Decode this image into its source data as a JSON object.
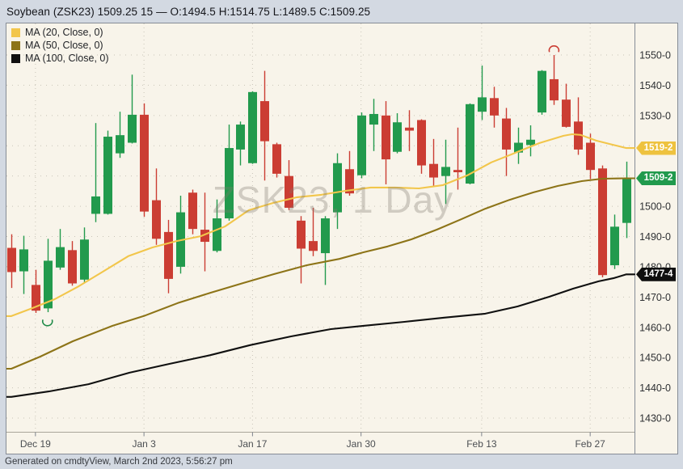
{
  "header": {
    "title": "Soybean (ZSK23) 1509.25 15 — O:1494.5 H:1514.75 L:1489.5 C:1509.25",
    "symbol_name": "Soybean",
    "symbol": "ZSK23",
    "last": "1509.25",
    "change": "15",
    "open": "1494.5",
    "high": "1514.75",
    "low": "1489.5",
    "close": "1509.25"
  },
  "legend": [
    {
      "label": "MA (20, Close, 0)",
      "color": "#f2c64b"
    },
    {
      "label": "MA (50, Close, 0)",
      "color": "#8d7418"
    },
    {
      "label": "MA (100, Close, 0)",
      "color": "#101010"
    }
  ],
  "footer": {
    "generated": "Generated on cmdtyView, March 2nd 2023, 5:56:27 pm"
  },
  "chart_data": {
    "type": "candlestick",
    "symbol": "ZSK23",
    "interval": "1 Day",
    "watermark": "ZSK23, 1 Day",
    "title": "Soybean (ZSK23)",
    "ylim": [
      1425.5,
      1552
    ],
    "grid": true,
    "colors": {
      "up": "#229a4d",
      "down": "#cb3d33",
      "background": "#f8f4ea"
    },
    "y_ticks": [
      {
        "label": "1550-0",
        "price": 1550
      },
      {
        "label": "1540-0",
        "price": 1540
      },
      {
        "label": "1530-0",
        "price": 1530
      },
      {
        "label": "1520-0",
        "price": 1520
      },
      {
        "label": "1510-0",
        "price": 1510
      },
      {
        "label": "1500-0",
        "price": 1500
      },
      {
        "label": "1490-0",
        "price": 1490
      },
      {
        "label": "1480-0",
        "price": 1480
      },
      {
        "label": "1470-0",
        "price": 1470
      },
      {
        "label": "1460-0",
        "price": 1460
      },
      {
        "label": "1450-0",
        "price": 1450
      },
      {
        "label": "1440-0",
        "price": 1440
      },
      {
        "label": "1430-0",
        "price": 1430
      }
    ],
    "x_ticks": [
      {
        "label": "Dec 19",
        "index": 2
      },
      {
        "label": "Jan 3",
        "index": 11
      },
      {
        "label": "Jan 17",
        "index": 20
      },
      {
        "label": "Jan 30",
        "index": 29
      },
      {
        "label": "Feb 13",
        "index": 39
      },
      {
        "label": "Feb 27",
        "index": 48
      }
    ],
    "badges": [
      {
        "label": "1519-2",
        "price": 1519.25,
        "bg": "#eec23f"
      },
      {
        "label": "1509-2",
        "price": 1509.25,
        "bg": "#219a4d"
      },
      {
        "label": "1477-4",
        "price": 1477.5,
        "bg": "#0f0f0f"
      }
    ],
    "candles": [
      [
        1486.25,
        1490.75,
        1473,
        1478.25
      ],
      [
        1478.5,
        1490.25,
        1471,
        1485.75
      ],
      [
        1474,
        1479,
        1464.75,
        1465.5
      ],
      [
        1466.25,
        1489.25,
        1465,
        1482
      ],
      [
        1479.75,
        1492.5,
        1479,
        1486.5
      ],
      [
        1485.5,
        1488.5,
        1473.75,
        1474.5
      ],
      [
        1475.75,
        1493,
        1474.5,
        1489
      ],
      [
        1497.5,
        1527.5,
        1494.75,
        1503.25
      ],
      [
        1497.5,
        1525,
        1497.25,
        1523
      ],
      [
        1517.5,
        1531.25,
        1516,
        1523.5
      ],
      [
        1521,
        1543.5,
        1520.75,
        1530.25
      ],
      [
        1530.25,
        1534,
        1496.5,
        1498.25
      ],
      [
        1502,
        1512.5,
        1487.25,
        1489.25
      ],
      [
        1491.5,
        1495.5,
        1471.25,
        1476
      ],
      [
        1480,
        1503.5,
        1477.75,
        1498
      ],
      [
        1504.5,
        1505.5,
        1490.75,
        1492.5
      ],
      [
        1492.25,
        1504.5,
        1478.5,
        1488.25
      ],
      [
        1485.25,
        1502.25,
        1484.75,
        1496
      ],
      [
        1496,
        1527,
        1495.25,
        1519.25
      ],
      [
        1518.75,
        1528,
        1513.5,
        1527
      ],
      [
        1514.25,
        1538,
        1514,
        1537.75
      ],
      [
        1534.75,
        1544.75,
        1508.5,
        1521.5
      ],
      [
        1520.5,
        1521,
        1509.5,
        1510.75
      ],
      [
        1510,
        1515.25,
        1498.75,
        1499.5
      ],
      [
        1495.25,
        1496.75,
        1474.5,
        1486
      ],
      [
        1488.5,
        1499.5,
        1483.5,
        1485.25
      ],
      [
        1484.5,
        1496.75,
        1474,
        1496
      ],
      [
        1498,
        1517.5,
        1492.5,
        1514.25
      ],
      [
        1512.25,
        1518.25,
        1503.5,
        1504.25
      ],
      [
        1510.25,
        1531,
        1509.25,
        1530
      ],
      [
        1527,
        1535.5,
        1518.25,
        1530.5
      ],
      [
        1530,
        1534.75,
        1507.25,
        1515.5
      ],
      [
        1518,
        1530.75,
        1517.5,
        1527.75
      ],
      [
        1526,
        1531.75,
        1518.25,
        1525
      ],
      [
        1528.5,
        1528.75,
        1510.75,
        1513.5
      ],
      [
        1514,
        1522.25,
        1506.75,
        1509.5
      ],
      [
        1510,
        1522,
        1500.75,
        1513
      ],
      [
        1512,
        1526,
        1505.5,
        1511.25
      ],
      [
        1507.5,
        1534,
        1507.25,
        1533.75
      ],
      [
        1531.25,
        1546.5,
        1528.5,
        1536
      ],
      [
        1535.75,
        1539.5,
        1526,
        1530
      ],
      [
        1529,
        1532.5,
        1510,
        1518.75
      ],
      [
        1517.75,
        1526,
        1514,
        1521
      ],
      [
        1520.25,
        1526.75,
        1516.5,
        1522
      ],
      [
        1531,
        1545,
        1530.25,
        1544.75
      ],
      [
        1542,
        1550,
        1533.5,
        1535
      ],
      [
        1535.25,
        1540.5,
        1526,
        1526.25
      ],
      [
        1528,
        1536,
        1517,
        1518.75
      ],
      [
        1521,
        1524,
        1509,
        1512
      ],
      [
        1512.5,
        1513.5,
        1476.5,
        1477.25
      ],
      [
        1480.5,
        1497.25,
        1479.25,
        1493.25
      ],
      [
        1494.5,
        1514.75,
        1489.5,
        1509.25
      ]
    ],
    "moving_averages": [
      {
        "name": "MA (20, Close, 0)",
        "period": 20,
        "color": "#f2c64b",
        "last_label": "1519-2",
        "points": [
          [
            0,
            1463.7
          ],
          [
            1.6,
            1466.1
          ],
          [
            3.6,
            1469.3
          ],
          [
            5.6,
            1473.6
          ],
          [
            7.6,
            1478.4
          ],
          [
            9.7,
            1483.5
          ],
          [
            11.7,
            1486.4
          ],
          [
            13.7,
            1488.5
          ],
          [
            15.7,
            1490.1
          ],
          [
            17.7,
            1493.3
          ],
          [
            19.7,
            1498.7
          ],
          [
            21.7,
            1501.1
          ],
          [
            23.7,
            1503
          ],
          [
            25.7,
            1503.8
          ],
          [
            27.7,
            1505.1
          ],
          [
            29.8,
            1506.2
          ],
          [
            31.8,
            1506.2
          ],
          [
            33.8,
            1505.9
          ],
          [
            35.8,
            1507
          ],
          [
            37.8,
            1510.2
          ],
          [
            39.8,
            1514.5
          ],
          [
            41.8,
            1517.7
          ],
          [
            43.8,
            1520.9
          ],
          [
            45.8,
            1523.3
          ],
          [
            46.5,
            1523.8
          ],
          [
            47.2,
            1523.6
          ],
          [
            48.5,
            1521.7
          ],
          [
            49.9,
            1520.3
          ],
          [
            51,
            1519.25
          ]
        ]
      },
      {
        "name": "MA (50, Close, 0)",
        "period": 50,
        "color": "#8d7418",
        "last_label": "1509-2",
        "points": [
          [
            0,
            1446.3
          ],
          [
            2.4,
            1450.3
          ],
          [
            5.1,
            1455.4
          ],
          [
            8.4,
            1460.5
          ],
          [
            11.1,
            1463.9
          ],
          [
            13.8,
            1468
          ],
          [
            16.5,
            1471.4
          ],
          [
            19.2,
            1474.6
          ],
          [
            21.8,
            1477.6
          ],
          [
            24.5,
            1480.5
          ],
          [
            27.2,
            1482.6
          ],
          [
            29.2,
            1484.8
          ],
          [
            31.2,
            1486.7
          ],
          [
            33.2,
            1489.1
          ],
          [
            35.3,
            1492.3
          ],
          [
            37.3,
            1495.7
          ],
          [
            39.3,
            1499.2
          ],
          [
            41.3,
            1502.1
          ],
          [
            43.3,
            1504.6
          ],
          [
            45.3,
            1506.7
          ],
          [
            47.3,
            1508.3
          ],
          [
            49,
            1509.1
          ],
          [
            51,
            1509.25
          ]
        ]
      },
      {
        "name": "MA (100, Close, 0)",
        "period": 100,
        "color": "#101010",
        "last_label": "1477-4",
        "points": [
          [
            0,
            1437
          ],
          [
            3.1,
            1438.8
          ],
          [
            6.4,
            1441.2
          ],
          [
            9.8,
            1445
          ],
          [
            13.1,
            1447.9
          ],
          [
            16.5,
            1450.8
          ],
          [
            19.8,
            1454.1
          ],
          [
            23.2,
            1457
          ],
          [
            26.5,
            1459.4
          ],
          [
            29.2,
            1460.5
          ],
          [
            32.6,
            1461.8
          ],
          [
            35.9,
            1463.2
          ],
          [
            39.3,
            1464.5
          ],
          [
            42,
            1466.9
          ],
          [
            44.6,
            1470.1
          ],
          [
            46.6,
            1472.8
          ],
          [
            48.7,
            1475.2
          ],
          [
            50,
            1476.3
          ],
          [
            51,
            1477.5
          ]
        ]
      }
    ],
    "annotations": [
      {
        "shape": "arc",
        "color": "#1e8a47",
        "index": 3,
        "price": 1462,
        "open_side": "top"
      },
      {
        "shape": "arc",
        "color": "#cb3d33",
        "index": 45,
        "price": 1551.5,
        "open_side": "bottom"
      }
    ]
  }
}
